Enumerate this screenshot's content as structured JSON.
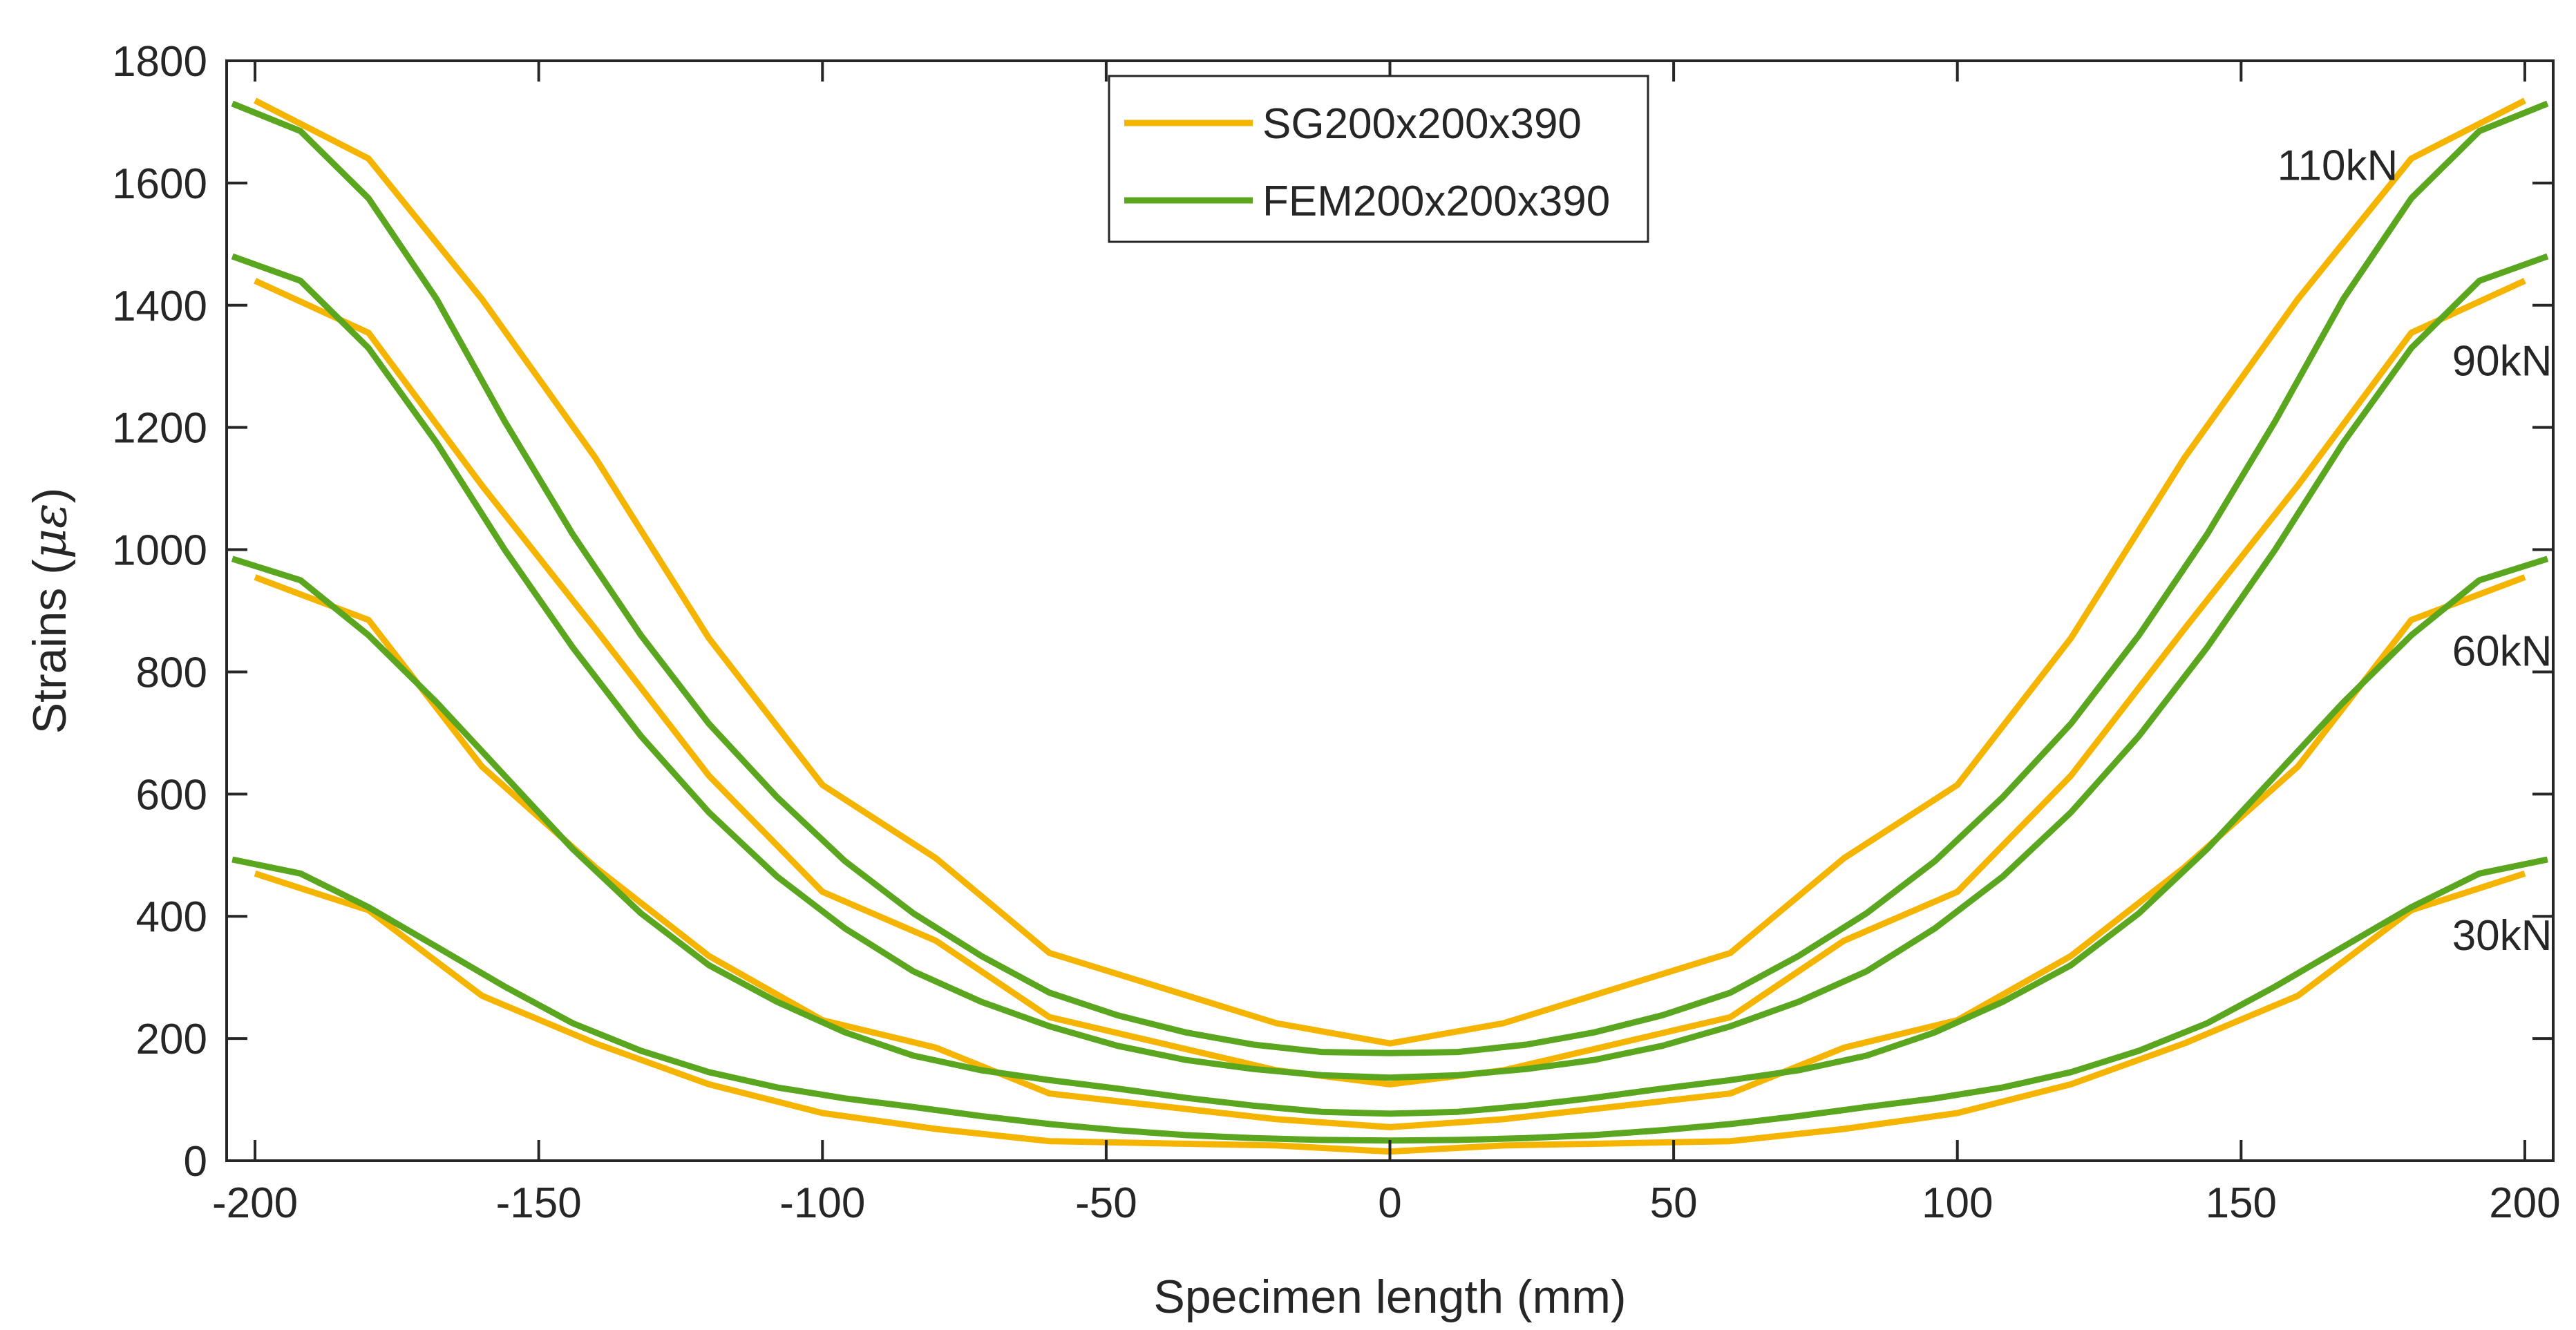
{
  "chart_data": {
    "type": "line",
    "title": "",
    "xlabel": "Specimen length (mm)",
    "ylabel_text": "Strains (",
    "ylabel_symbol": "με",
    "ylabel_close": ")",
    "xlim": [
      -205,
      205
    ],
    "ylim": [
      0,
      1800
    ],
    "xticks": [
      -200,
      -150,
      -100,
      -50,
      0,
      50,
      100,
      150,
      200
    ],
    "yticks": [
      0,
      200,
      400,
      600,
      800,
      1000,
      1200,
      1400,
      1600,
      1800
    ],
    "grid": false,
    "legend_position": "top-center",
    "colors": {
      "sg": "#f4b400",
      "fem": "#5aa61e",
      "axis": "#262626"
    },
    "legend": [
      {
        "name": "SG200x200x390",
        "color_key": "sg"
      },
      {
        "name": "FEM200x200x390",
        "color_key": "fem"
      }
    ],
    "load_labels": [
      {
        "text": "110kN",
        "x": 167,
        "y": 1605
      },
      {
        "text": "90kN",
        "x": 196,
        "y": 1285
      },
      {
        "text": "60kN",
        "x": 196,
        "y": 810
      },
      {
        "text": "30kN",
        "x": 196,
        "y": 345
      }
    ],
    "series": [
      {
        "name": "SG 110kN",
        "type": "sg",
        "x": [
          -200,
          -180,
          -160,
          -140,
          -120,
          -100,
          -80,
          -60,
          -20,
          0,
          20,
          60,
          80,
          100,
          120,
          140,
          160,
          180,
          200
        ],
        "y": [
          1735,
          1640,
          1410,
          1150,
          855,
          615,
          495,
          340,
          225,
          192,
          225,
          340,
          495,
          615,
          855,
          1150,
          1410,
          1640,
          1735
        ]
      },
      {
        "name": "SG 90kN",
        "type": "sg",
        "x": [
          -200,
          -180,
          -160,
          -140,
          -120,
          -100,
          -80,
          -60,
          -20,
          0,
          20,
          60,
          80,
          100,
          120,
          140,
          160,
          180,
          200
        ],
        "y": [
          1440,
          1355,
          1105,
          870,
          630,
          440,
          360,
          235,
          148,
          125,
          148,
          235,
          360,
          440,
          630,
          870,
          1105,
          1355,
          1440
        ]
      },
      {
        "name": "SG 60kN",
        "type": "sg",
        "x": [
          -200,
          -180,
          -160,
          -140,
          -120,
          -100,
          -80,
          -60,
          -20,
          0,
          20,
          60,
          80,
          100,
          120,
          140,
          160,
          180,
          200
        ],
        "y": [
          955,
          885,
          645,
          480,
          335,
          230,
          185,
          110,
          68,
          55,
          68,
          110,
          185,
          230,
          335,
          480,
          645,
          885,
          955
        ]
      },
      {
        "name": "SG 30kN",
        "type": "sg",
        "x": [
          -200,
          -180,
          -160,
          -140,
          -120,
          -100,
          -80,
          -60,
          -20,
          0,
          20,
          60,
          80,
          100,
          120,
          140,
          160,
          180,
          200
        ],
        "y": [
          470,
          410,
          270,
          192,
          125,
          78,
          52,
          32,
          25,
          15,
          25,
          32,
          52,
          78,
          125,
          192,
          270,
          410,
          470
        ]
      },
      {
        "name": "FEM 110kN",
        "type": "fem",
        "x": [
          -204,
          -192,
          -180,
          -168,
          -156,
          -144,
          -132,
          -120,
          -108,
          -96,
          -84,
          -72,
          -60,
          -48,
          -36,
          -24,
          -12,
          0,
          12,
          24,
          36,
          48,
          60,
          72,
          84,
          96,
          108,
          120,
          132,
          144,
          156,
          168,
          180,
          192,
          204
        ],
        "y": [
          1730,
          1685,
          1575,
          1410,
          1210,
          1025,
          860,
          715,
          595,
          490,
          405,
          335,
          275,
          238,
          210,
          190,
          178,
          176,
          178,
          190,
          210,
          238,
          275,
          335,
          405,
          490,
          595,
          715,
          860,
          1025,
          1210,
          1410,
          1575,
          1685,
          1730
        ]
      },
      {
        "name": "FEM 90kN",
        "type": "fem",
        "x": [
          -204,
          -192,
          -180,
          -168,
          -156,
          -144,
          -132,
          -120,
          -108,
          -96,
          -84,
          -72,
          -60,
          -48,
          -36,
          -24,
          -12,
          0,
          12,
          24,
          36,
          48,
          60,
          72,
          84,
          96,
          108,
          120,
          132,
          144,
          156,
          168,
          180,
          192,
          204
        ],
        "y": [
          1480,
          1440,
          1330,
          1175,
          1000,
          840,
          695,
          570,
          465,
          380,
          310,
          260,
          220,
          188,
          165,
          150,
          140,
          136,
          140,
          150,
          165,
          188,
          220,
          260,
          310,
          380,
          465,
          570,
          695,
          840,
          1000,
          1175,
          1330,
          1440,
          1480
        ]
      },
      {
        "name": "FEM 60kN",
        "type": "fem",
        "x": [
          -204,
          -192,
          -180,
          -168,
          -156,
          -144,
          -132,
          -120,
          -108,
          -96,
          -84,
          -72,
          -60,
          -48,
          -36,
          -24,
          -12,
          0,
          12,
          24,
          36,
          48,
          60,
          72,
          84,
          96,
          108,
          120,
          132,
          144,
          156,
          168,
          180,
          192,
          204
        ],
        "y": [
          985,
          950,
          860,
          750,
          630,
          510,
          405,
          320,
          260,
          210,
          172,
          148,
          132,
          118,
          103,
          90,
          80,
          77,
          80,
          90,
          103,
          118,
          132,
          148,
          172,
          210,
          260,
          320,
          405,
          510,
          630,
          750,
          860,
          950,
          985
        ]
      },
      {
        "name": "FEM 30kN",
        "type": "fem",
        "x": [
          -204,
          -192,
          -180,
          -168,
          -156,
          -144,
          -132,
          -120,
          -108,
          -96,
          -84,
          -72,
          -60,
          -48,
          -36,
          -24,
          -12,
          0,
          12,
          24,
          36,
          48,
          60,
          72,
          84,
          96,
          108,
          120,
          132,
          144,
          156,
          168,
          180,
          192,
          204
        ],
        "y": [
          493,
          470,
          415,
          350,
          285,
          225,
          180,
          145,
          120,
          102,
          88,
          73,
          60,
          50,
          42,
          37,
          34,
          33,
          34,
          37,
          42,
          50,
          60,
          73,
          88,
          102,
          120,
          145,
          180,
          225,
          285,
          350,
          415,
          470,
          493
        ]
      }
    ]
  }
}
